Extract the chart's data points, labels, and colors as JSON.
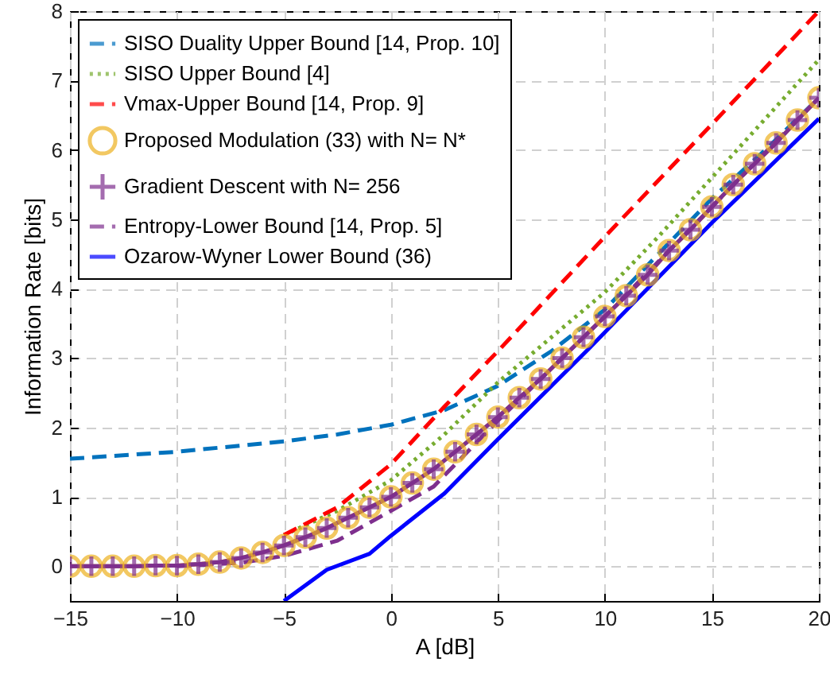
{
  "chart_data": {
    "type": "line",
    "xlabel": "A [dB]",
    "ylabel": "Information Rate [bits]",
    "xlim": [
      -15,
      20
    ],
    "xticks": [
      -15,
      -10,
      -5,
      0,
      5,
      10,
      15,
      20
    ],
    "ylim": [
      -0.5,
      8
    ],
    "yticks": [
      0,
      1,
      2,
      3,
      4,
      5,
      6,
      7,
      8
    ],
    "grid": true,
    "legend": "top left",
    "series": [
      {
        "name": "SISO Duality Upper Bound [14, Prop. 10]",
        "color": "#0072bd",
        "line_style": "dashed",
        "marker": "none",
        "x": [
          -15,
          -10,
          -5,
          -2.5,
          0,
          2.5,
          5,
          7.5,
          10,
          12.5,
          15,
          17.5,
          20
        ],
        "values": [
          1.55,
          1.65,
          1.8,
          1.9,
          2.04,
          2.25,
          2.6,
          3.1,
          3.7,
          4.5,
          5.3,
          6.0,
          6.75
        ]
      },
      {
        "name": "SISO Upper Bound [4]",
        "color": "#77ac30",
        "line_style": "dotted",
        "marker": "none",
        "x": [
          -5,
          -2.5,
          0,
          2.5,
          5,
          7.5,
          10,
          12.5,
          15,
          17.5,
          20
        ],
        "values": [
          0.45,
          0.8,
          1.24,
          1.9,
          2.65,
          3.3,
          3.95,
          4.75,
          5.6,
          6.45,
          7.3
        ]
      },
      {
        "name": "Vmax-Upper Bound [14, Prop. 9]",
        "color": "#ff0000",
        "line_style": "dashed",
        "marker": "none",
        "x": [
          -5,
          -2.5,
          0,
          2.5,
          5,
          10,
          15,
          20
        ],
        "values": [
          0.45,
          0.85,
          1.47,
          2.3,
          3.1,
          4.75,
          6.37,
          8
        ]
      },
      {
        "name": "Proposed Modulation (33) with N= N*",
        "color": "#edb120",
        "line_style": "solid",
        "marker": "circle",
        "x": [
          -15,
          -14,
          -13,
          -12,
          -11,
          -10,
          -9,
          -8,
          -7,
          -6,
          -5,
          -4,
          -3,
          -2,
          -1,
          0,
          1,
          2,
          3,
          4,
          5,
          6,
          7,
          8,
          9,
          10,
          11,
          12,
          13,
          14,
          15,
          16,
          17,
          18,
          19,
          20
        ],
        "values": [
          0,
          0,
          0,
          0,
          0.01,
          0.01,
          0.03,
          0.06,
          0.12,
          0.2,
          0.3,
          0.42,
          0.55,
          0.7,
          0.85,
          1.0,
          1.2,
          1.4,
          1.65,
          1.9,
          2.15,
          2.43,
          2.7,
          3.0,
          3.3,
          3.6,
          3.9,
          4.2,
          4.55,
          4.85,
          5.18,
          5.5,
          5.8,
          6.1,
          6.43,
          6.75
        ]
      },
      {
        "name": "Gradient Descent with N= 256",
        "color": "#7e2f8e",
        "line_style": "solid",
        "marker": "cross",
        "x": [
          -15,
          -14,
          -13,
          -12,
          -11,
          -10,
          -9,
          -8,
          -7,
          -6,
          -5,
          -4,
          -3,
          -2,
          -1,
          0,
          1,
          2,
          3,
          4,
          5,
          6,
          7,
          8,
          9,
          10,
          11,
          12,
          13,
          14,
          15,
          16,
          17,
          18,
          19,
          20
        ],
        "values": [
          0,
          0,
          0,
          0,
          0.01,
          0.01,
          0.03,
          0.06,
          0.12,
          0.2,
          0.3,
          0.42,
          0.55,
          0.7,
          0.85,
          1.0,
          1.2,
          1.4,
          1.65,
          1.9,
          2.15,
          2.43,
          2.7,
          3.0,
          3.3,
          3.6,
          3.9,
          4.2,
          4.55,
          4.85,
          5.18,
          5.5,
          5.8,
          6.1,
          6.43,
          6.75
        ]
      },
      {
        "name": "Entropy-Lower Bound [14, Prop. 5]",
        "color": "#7e2f8e",
        "line_style": "dashed",
        "marker": "none",
        "x": [
          -10,
          -7,
          -5,
          -2.5,
          0,
          2,
          5,
          10,
          15,
          20
        ],
        "values": [
          0,
          0.05,
          0.15,
          0.37,
          0.8,
          1.15,
          2.1,
          3.6,
          5.18,
          6.75
        ]
      },
      {
        "name": "Ozarow-Wyner Lower Bound (36)",
        "color": "#0000ff",
        "line_style": "solid",
        "marker": "none",
        "x": [
          -5,
          -3,
          -1,
          0,
          2.5,
          5,
          9.2,
          15,
          20
        ],
        "values": [
          -0.5,
          -0.05,
          0.18,
          0.44,
          1.05,
          1.83,
          3.12,
          4.95,
          6.45
        ]
      }
    ]
  }
}
